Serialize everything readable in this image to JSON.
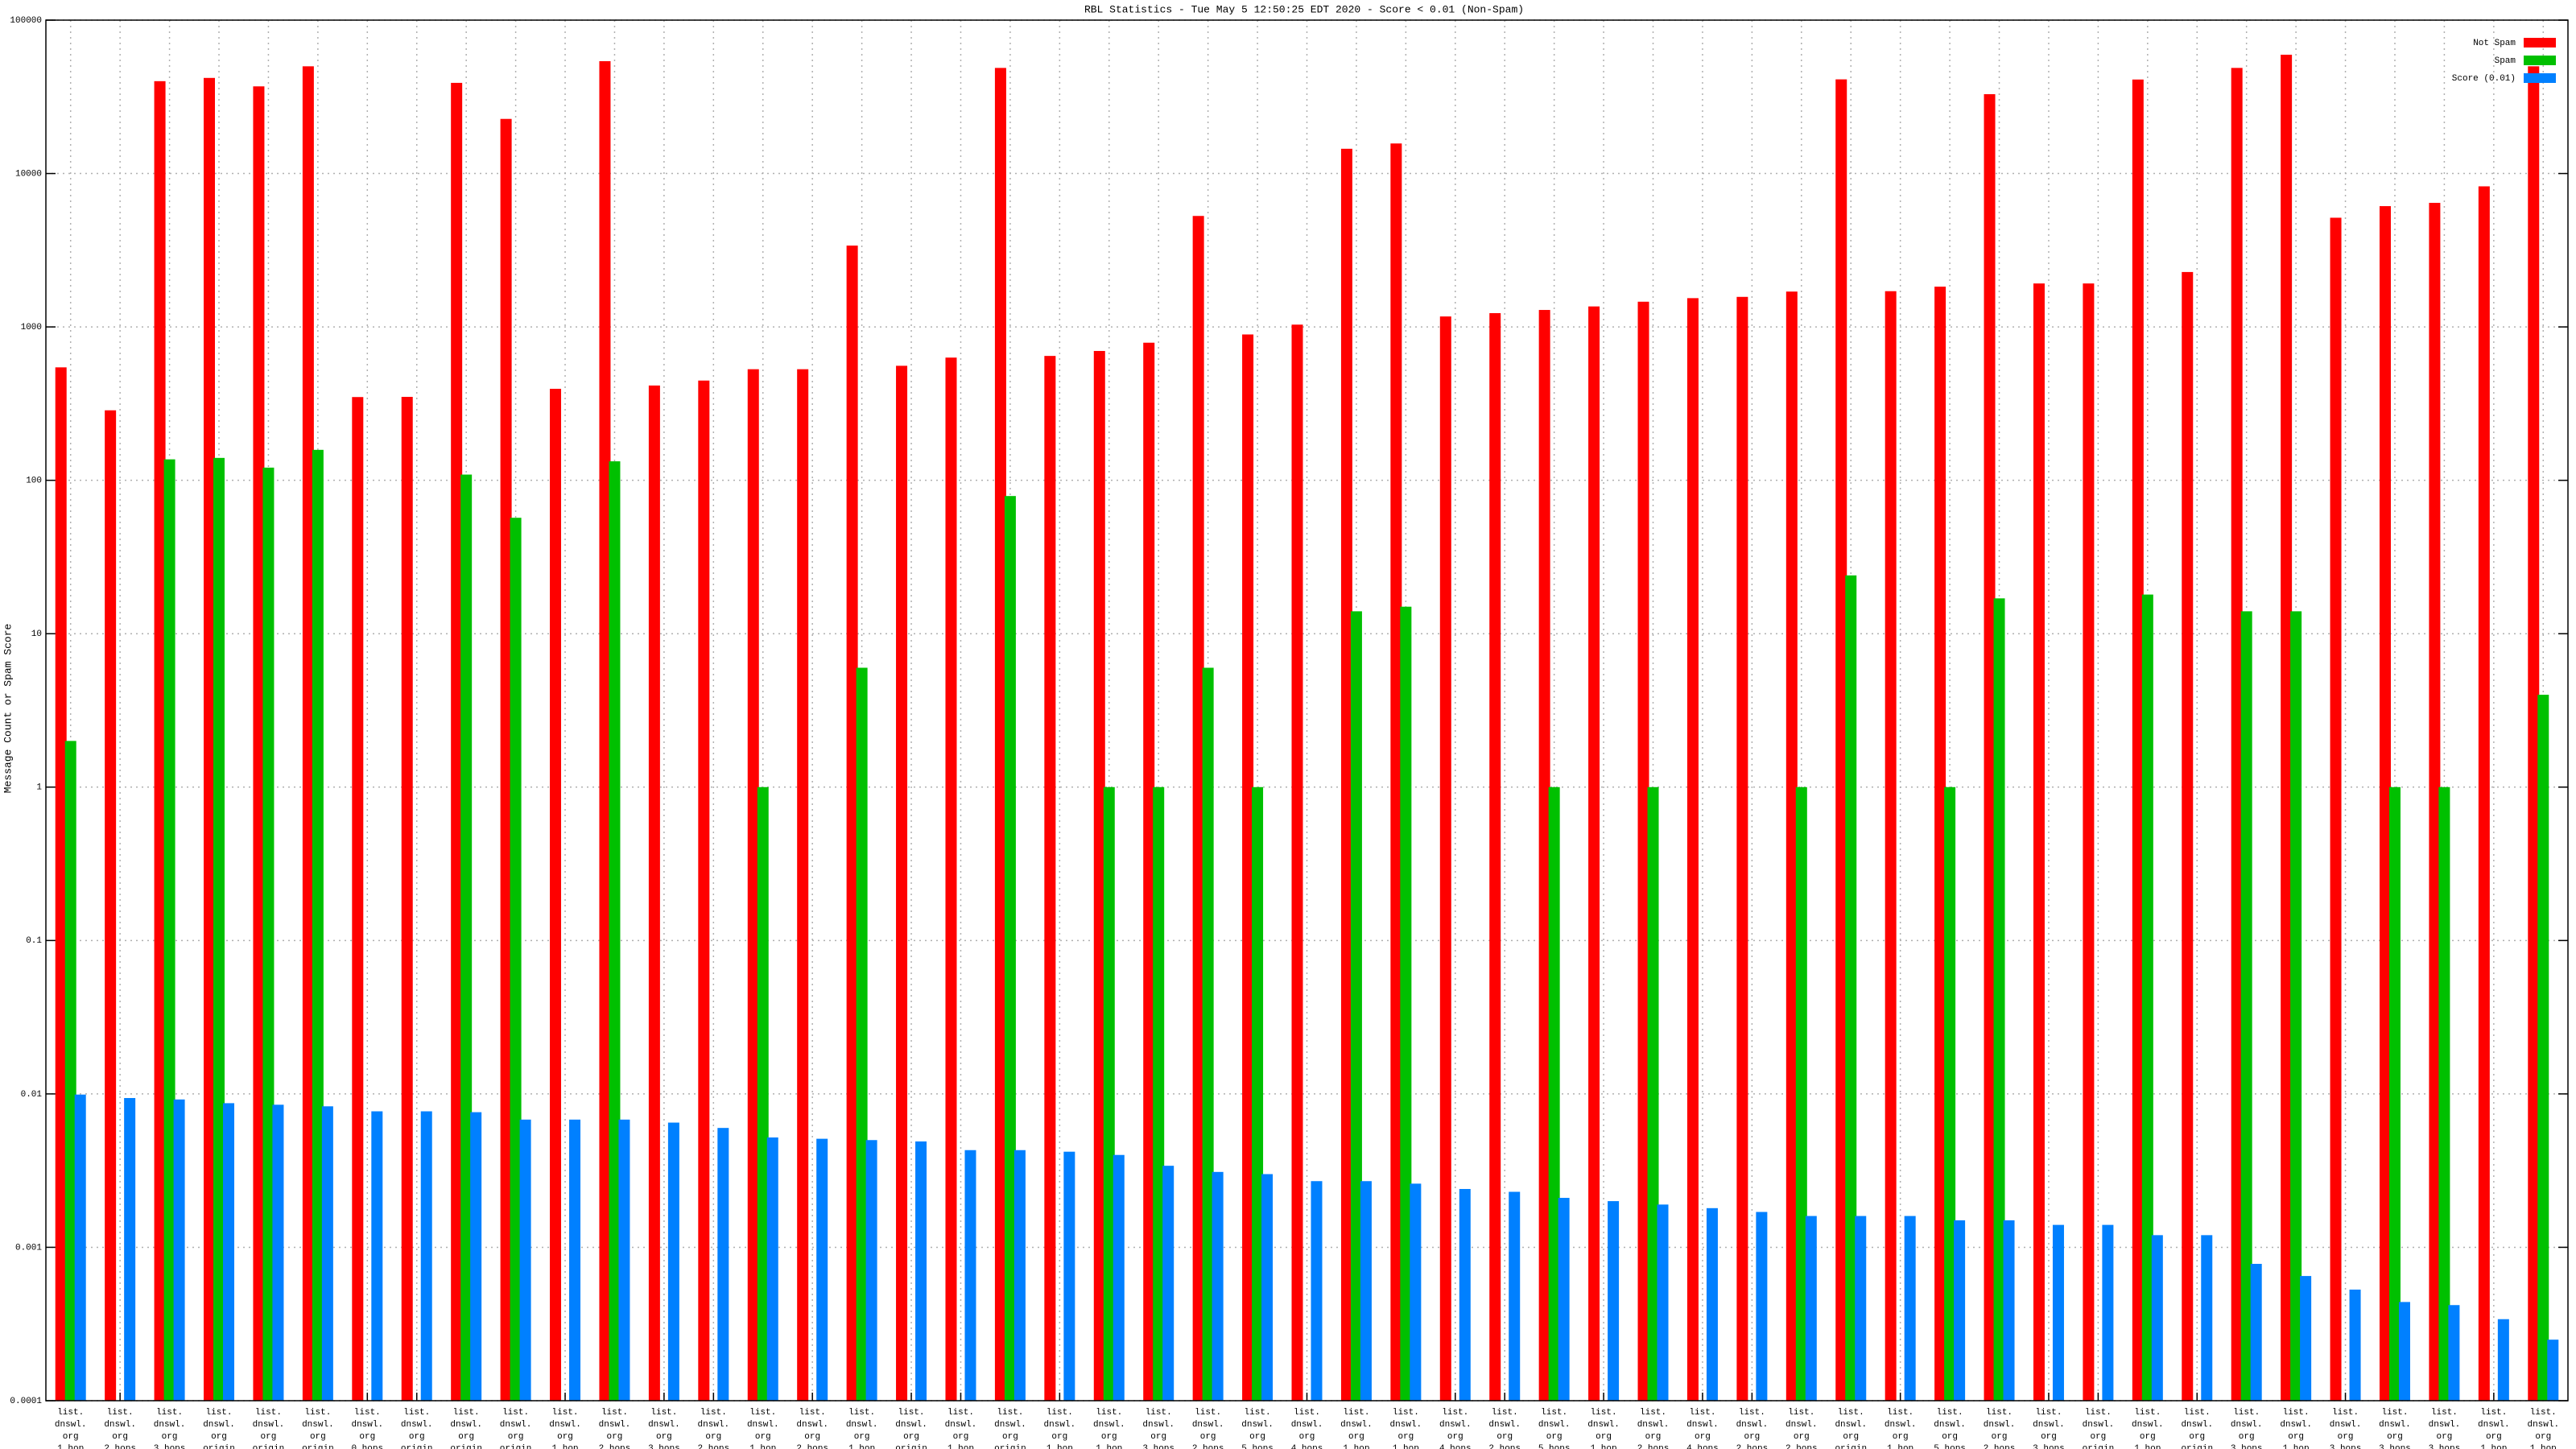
{
  "chart_data": {
    "type": "bar",
    "title": "RBL Statistics - Tue May  5 12:50:25 EDT 2020 - Score < 0.01 (Non-Spam)",
    "y_label": "Message Count or Spam Score",
    "log_scale": true,
    "grid": true,
    "legend": "upper right",
    "ylim": [
      0.0001,
      100000
    ],
    "yticks": [
      0.0001,
      0.001,
      0.01,
      0.1,
      1,
      10,
      100,
      1000,
      10000,
      100000
    ],
    "categories": [
      [
        "list.",
        "dnswl.",
        "org",
        "1 hop"
      ],
      [
        "list.",
        "dnswl.",
        "org",
        "2 hops"
      ],
      [
        "list.",
        "dnswl.",
        "org",
        "3 hops"
      ],
      [
        "list.",
        "dnswl.",
        "org",
        "origin"
      ],
      [
        "list.",
        "dnswl.",
        "org",
        "origin"
      ],
      [
        "list.",
        "dnswl.",
        "org",
        "origin"
      ],
      [
        "list.",
        "dnswl.",
        "org",
        "0 hops"
      ],
      [
        "list.",
        "dnswl.",
        "org",
        "origin"
      ],
      [
        "list.",
        "dnswl.",
        "org",
        "origin"
      ],
      [
        "list.",
        "dnswl.",
        "org",
        "origin"
      ],
      [
        "list.",
        "dnswl.",
        "org",
        "1 hop"
      ],
      [
        "list.",
        "dnswl.",
        "org",
        "2 hops"
      ],
      [
        "list.",
        "dnswl.",
        "org",
        "3 hops"
      ],
      [
        "list.",
        "dnswl.",
        "org",
        "2 hops"
      ],
      [
        "list.",
        "dnswl.",
        "org",
        "1 hop"
      ],
      [
        "list.",
        "dnswl.",
        "org",
        "2 hops"
      ],
      [
        "list.",
        "dnswl.",
        "org",
        "1 hop"
      ],
      [
        "list.",
        "dnswl.",
        "org",
        "origin"
      ],
      [
        "list.",
        "dnswl.",
        "org",
        "1 hop"
      ],
      [
        "list.",
        "dnswl.",
        "org",
        "origin"
      ],
      [
        "list.",
        "dnswl.",
        "org",
        "1 hop"
      ],
      [
        "list.",
        "dnswl.",
        "org",
        "1 hop"
      ],
      [
        "list.",
        "dnswl.",
        "org",
        "3 hops"
      ],
      [
        "list.",
        "dnswl.",
        "org",
        "2 hops"
      ],
      [
        "list.",
        "dnswl.",
        "org",
        "5 hops"
      ],
      [
        "list.",
        "dnswl.",
        "org",
        "4 hops"
      ],
      [
        "list.",
        "dnswl.",
        "org",
        "1 hop"
      ],
      [
        "list.",
        "dnswl.",
        "org",
        "1 hop"
      ],
      [
        "list.",
        "dnswl.",
        "org",
        "4 hops"
      ],
      [
        "list.",
        "dnswl.",
        "org",
        "2 hops"
      ],
      [
        "list.",
        "dnswl.",
        "org",
        "5 hops"
      ],
      [
        "list.",
        "dnswl.",
        "org",
        "1 hop"
      ],
      [
        "list.",
        "dnswl.",
        "org",
        "2 hops"
      ],
      [
        "list.",
        "dnswl.",
        "org",
        "4 hops"
      ],
      [
        "list.",
        "dnswl.",
        "org",
        "2 hops"
      ],
      [
        "list.",
        "dnswl.",
        "org",
        "2 hops"
      ],
      [
        "list.",
        "dnswl.",
        "org",
        "origin"
      ],
      [
        "list.",
        "dnswl.",
        "org",
        "1 hop"
      ],
      [
        "list.",
        "dnswl.",
        "org",
        "5 hops"
      ],
      [
        "list.",
        "dnswl.",
        "org",
        "2 hops"
      ],
      [
        "list.",
        "dnswl.",
        "org",
        "3 hops"
      ],
      [
        "list.",
        "dnswl.",
        "org",
        "origin"
      ],
      [
        "list.",
        "dnswl.",
        "org",
        "1 hop"
      ],
      [
        "list.",
        "dnswl.",
        "org",
        "origin"
      ],
      [
        "list.",
        "dnswl.",
        "org",
        "3 hops"
      ],
      [
        "list.",
        "dnswl.",
        "org",
        "1 hop"
      ],
      [
        "list.",
        "dnswl.",
        "org",
        "3 hops"
      ],
      [
        "list.",
        "dnswl.",
        "org",
        "3 hops"
      ],
      [
        "list.",
        "dnswl.",
        "org",
        "3 hops"
      ],
      [
        "list.",
        "dnswl.",
        "org",
        "1 hop"
      ],
      [
        "list.",
        "dnswl.",
        "org",
        "1 hop"
      ]
    ],
    "series": [
      {
        "name": "Not Spam",
        "color": "#ff0000",
        "values": [
          545,
          286,
          40000,
          42000,
          37000,
          50000,
          349,
          350,
          39000,
          22700,
          395,
          54000,
          415,
          447,
          530,
          530,
          3390,
          558,
          631,
          48800,
          647,
          697,
          789,
          5290,
          893,
          1035,
          14500,
          15700,
          1170,
          1230,
          1290,
          1360,
          1460,
          1540,
          1570,
          1700,
          41100,
          1710,
          1830,
          32900,
          1920,
          1920,
          41000,
          2280,
          48800,
          59500,
          5150,
          6130,
          6440,
          8250,
          50000
        ]
      },
      {
        "name": "Spam",
        "color": "#00c000",
        "values": [
          2,
          null,
          137,
          140,
          121,
          158,
          null,
          null,
          109,
          57,
          null,
          133,
          null,
          null,
          1,
          null,
          6,
          null,
          null,
          79,
          null,
          1,
          1,
          6,
          1,
          null,
          14,
          15,
          null,
          null,
          1,
          null,
          1,
          null,
          null,
          1,
          24,
          null,
          1,
          17,
          null,
          null,
          18,
          null,
          14,
          14,
          null,
          1,
          1,
          null,
          4
        ]
      },
      {
        "name": "Score (0.01)",
        "color": "#0080ff",
        "values": [
          0.0099,
          0.0094,
          0.0092,
          0.0087,
          0.0085,
          0.0083,
          0.0077,
          0.0077,
          0.0076,
          0.0068,
          0.0068,
          0.0068,
          0.0065,
          0.006,
          0.0052,
          0.0051,
          0.005,
          0.0049,
          0.0043,
          0.0043,
          0.0042,
          0.004,
          0.0034,
          0.0031,
          0.003,
          0.0027,
          0.0027,
          0.0026,
          0.0024,
          0.0023,
          0.0021,
          0.002,
          0.0019,
          0.0018,
          0.0017,
          0.0016,
          0.0016,
          0.0016,
          0.0015,
          0.0015,
          0.0014,
          0.0014,
          0.0012,
          0.0012,
          0.00078,
          0.00065,
          0.00053,
          0.00044,
          0.00042,
          0.00034,
          0.00025
        ]
      }
    ]
  }
}
